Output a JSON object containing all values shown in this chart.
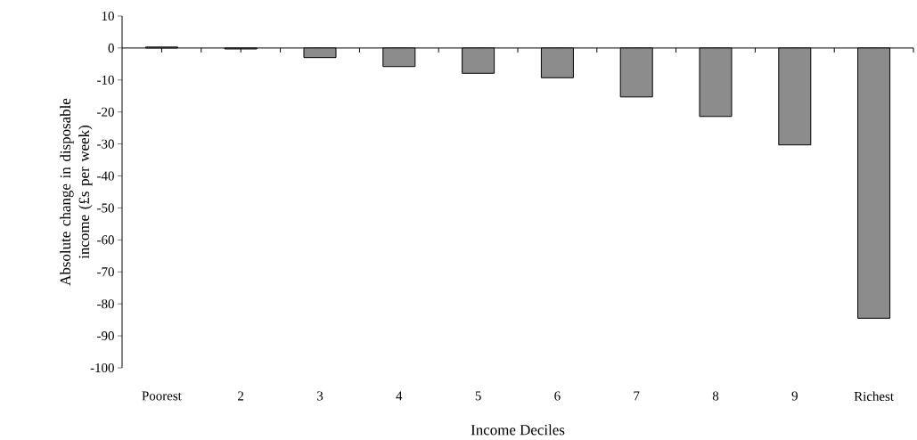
{
  "chart_data": {
    "type": "bar",
    "xlabel": "Income Deciles",
    "ylabel": "Absolute change in disposable income (£s per week)",
    "categories": [
      "Poorest",
      "2",
      "3",
      "4",
      "5",
      "6",
      "7",
      "8",
      "9",
      "Richest"
    ],
    "values": [
      0.3,
      -0.3,
      -3,
      -5.8,
      -7.9,
      -9.3,
      -15.3,
      -21.4,
      -30.3,
      -84.5
    ],
    "color": "#8c8c8c",
    "ylim": [
      -100,
      10
    ],
    "yticks": [
      -100,
      -90,
      -80,
      -70,
      -60,
      -50,
      -40,
      -30,
      -20,
      -10,
      0,
      10
    ]
  }
}
